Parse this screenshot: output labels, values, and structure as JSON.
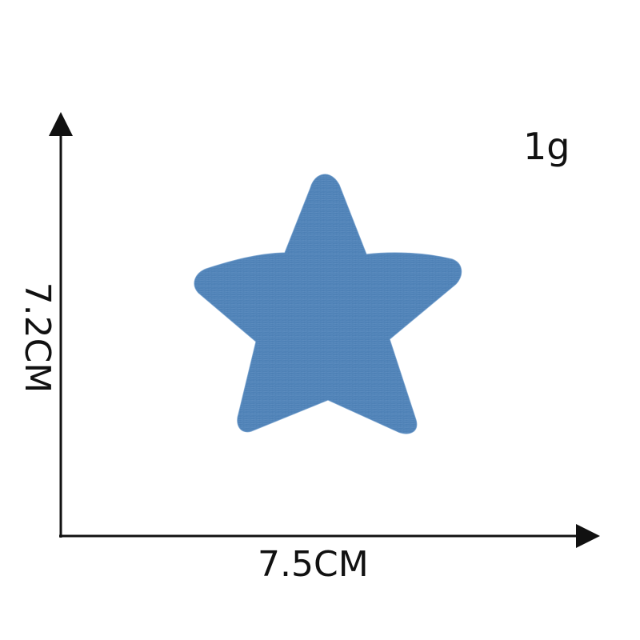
{
  "product": {
    "weight_label": "1g",
    "patch_color": "#4e80b6",
    "patch_shape": "star"
  },
  "dimensions": {
    "width_label": "7.5CM",
    "height_label": "7.2CM"
  }
}
